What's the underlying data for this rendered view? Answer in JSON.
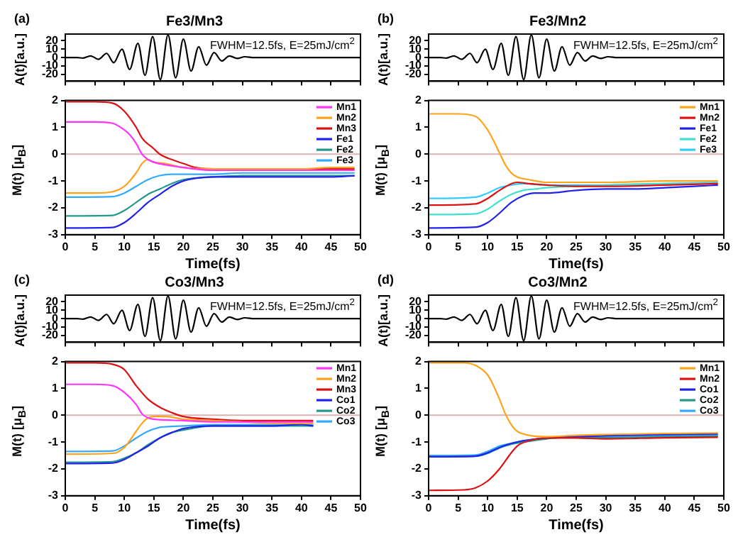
{
  "chart_data": [
    {
      "type": "line",
      "title": "Fe3/Mn3",
      "ylabel": "A(t)[a.u.]",
      "annotations": [
        "(a)",
        "FWHM=12.5fs, E=25mJ/cm$^{2}$"
      ],
      "xlim": [
        0,
        50
      ],
      "xticks": [
        0,
        5,
        10,
        15,
        20,
        25,
        30,
        35,
        40,
        45,
        50
      ],
      "ylim": [
        -28,
        28
      ],
      "yticks": [
        -20,
        -10,
        0,
        10,
        20
      ],
      "tick_labels": "y",
      "series": [
        {
          "color": "#000000",
          "x": [
            0,
            2,
            3,
            4.3,
            5.6,
            7,
            8.2,
            9.6,
            10.9,
            12.3,
            13.5,
            14.8,
            16.1,
            17.4,
            18.7,
            20,
            21.3,
            22.6,
            23.9,
            25.2,
            26.5,
            27.8,
            29.1,
            30.4,
            32,
            35,
            40,
            45,
            50
          ],
          "values": [
            0,
            0,
            -0.5,
            2,
            -2,
            5,
            -6,
            10,
            -14,
            17,
            -21,
            25,
            -26,
            27,
            -24,
            22,
            -16,
            13,
            -9,
            6,
            -4,
            2,
            -1,
            1,
            0,
            0,
            0,
            0,
            0
          ]
        }
      ]
    },
    {
      "type": "line",
      "title": "Fe3/Mn2",
      "ylabel": "A(t)[a.u.]",
      "annotations": [
        "(b)",
        "FWHM=12.5fs, E=25mJ/cm$^{2}$"
      ],
      "xlim": [
        0,
        50
      ],
      "xticks": [
        0,
        5,
        10,
        15,
        20,
        25,
        30,
        35,
        40,
        45,
        50
      ],
      "ylim": [
        -28,
        28
      ],
      "yticks": [
        -20,
        -10,
        0,
        10,
        20
      ],
      "tick_labels": "y",
      "series": [
        {
          "color": "#000000",
          "x": [
            0,
            2,
            3,
            4.3,
            5.6,
            7,
            8.2,
            9.6,
            10.9,
            12.3,
            13.5,
            14.8,
            16.1,
            17.4,
            18.7,
            20,
            21.3,
            22.6,
            23.9,
            25.2,
            26.5,
            27.8,
            29.1,
            30.4,
            32,
            35,
            40,
            45,
            50
          ],
          "values": [
            0,
            0,
            -0.5,
            2,
            -2,
            5,
            -6,
            10,
            -14,
            17,
            -21,
            25,
            -26,
            27,
            -24,
            22,
            -16,
            13,
            -9,
            6,
            -4,
            2,
            -1,
            1,
            0,
            0,
            0,
            0,
            0
          ]
        }
      ]
    },
    {
      "type": "line",
      "xlabel": "Time(fs)",
      "ylabel": "M(t) [μ$_{B}$]",
      "xlim": [
        0,
        50
      ],
      "xticks": [
        0,
        5,
        10,
        15,
        20,
        25,
        30,
        35,
        40,
        45,
        50
      ],
      "ylim": [
        -3,
        2
      ],
      "yticks": [
        -3,
        -2,
        -1,
        0,
        1,
        2
      ],
      "legend": "top right",
      "ref_lines": [
        {
          "axis": "y",
          "value": 0,
          "color": "#d9b3b3"
        }
      ],
      "series": [
        {
          "name": "Mn1",
          "color": "#ff33ff",
          "x": [
            0,
            5,
            8,
            10,
            11,
            12,
            13,
            14,
            15,
            17,
            20,
            25,
            30,
            35,
            40,
            45,
            49
          ],
          "values": [
            1.2,
            1.2,
            1.15,
            0.9,
            0.7,
            0.4,
            0,
            -0.2,
            -0.3,
            -0.4,
            -0.5,
            -0.6,
            -0.6,
            -0.6,
            -0.6,
            -0.6,
            -0.6
          ]
        },
        {
          "name": "Mn2",
          "color": "#ffa31a",
          "x": [
            0,
            5,
            8,
            10,
            12,
            13,
            14,
            15,
            17,
            20,
            25,
            30,
            35,
            40,
            45,
            49
          ],
          "values": [
            -1.45,
            -1.45,
            -1.4,
            -1.2,
            -0.7,
            -0.35,
            -0.2,
            -0.3,
            -0.35,
            -0.5,
            -0.55,
            -0.55,
            -0.55,
            -0.55,
            -0.5,
            -0.5
          ]
        },
        {
          "name": "Mn3",
          "color": "#dd1111",
          "x": [
            0,
            5,
            8,
            10,
            12,
            13,
            15,
            16,
            18,
            20,
            22,
            25,
            30,
            40,
            49
          ],
          "values": [
            1.95,
            1.95,
            1.9,
            1.6,
            1,
            0.6,
            0.2,
            0,
            -0.2,
            -0.35,
            -0.5,
            -0.55,
            -0.55,
            -0.55,
            -0.55
          ]
        },
        {
          "name": "Fe1",
          "color": "#2222ee",
          "x": [
            0,
            8,
            10,
            12,
            14,
            16,
            18,
            20,
            22,
            25,
            30,
            35,
            40,
            45,
            49
          ],
          "values": [
            -2.75,
            -2.73,
            -2.55,
            -2.2,
            -1.8,
            -1.5,
            -1.2,
            -1,
            -0.9,
            -0.85,
            -0.85,
            -0.85,
            -0.85,
            -0.85,
            -0.8
          ]
        },
        {
          "name": "Fe2",
          "color": "#22998a",
          "x": [
            0,
            8,
            10,
            12,
            14,
            16,
            18,
            20,
            25,
            30,
            40,
            49
          ],
          "values": [
            -2.3,
            -2.28,
            -2.1,
            -1.8,
            -1.5,
            -1.3,
            -1.1,
            -0.95,
            -0.85,
            -0.8,
            -0.8,
            -0.8
          ]
        },
        {
          "name": "Fe3",
          "color": "#33aaff",
          "x": [
            0,
            8,
            10,
            12,
            14,
            16,
            18,
            20,
            25,
            30,
            40,
            49
          ],
          "values": [
            -1.6,
            -1.58,
            -1.45,
            -1.2,
            -0.95,
            -0.8,
            -0.75,
            -0.75,
            -0.75,
            -0.7,
            -0.7,
            -0.7
          ]
        }
      ]
    },
    {
      "type": "line",
      "xlabel": "Time(fs)",
      "ylabel": "M(t) [μ$_{B}$]",
      "xlim": [
        0,
        50
      ],
      "xticks": [
        0,
        5,
        10,
        15,
        20,
        25,
        30,
        35,
        40,
        45,
        50
      ],
      "ylim": [
        -3,
        2
      ],
      "yticks": [
        -3,
        -2,
        -1,
        0,
        1,
        2
      ],
      "legend": "top right",
      "ref_lines": [
        {
          "axis": "y",
          "value": 0,
          "color": "#d9b3b3"
        }
      ],
      "series": [
        {
          "name": "Mn1",
          "color": "#ffa31a",
          "x": [
            0,
            5,
            8,
            10,
            11,
            12,
            13,
            14,
            15,
            17,
            20,
            25,
            30,
            40,
            49
          ],
          "values": [
            1.5,
            1.5,
            1.4,
            0.9,
            0.5,
            0.05,
            -0.4,
            -0.7,
            -0.85,
            -0.95,
            -1.05,
            -1.05,
            -1.05,
            -1,
            -1
          ]
        },
        {
          "name": "Mn2",
          "color": "#dd1111",
          "x": [
            0,
            8,
            10,
            12,
            14,
            15,
            17,
            20,
            25,
            30,
            40,
            49
          ],
          "values": [
            -1.9,
            -1.85,
            -1.65,
            -1.35,
            -1.1,
            -1.05,
            -1.1,
            -1.15,
            -1.2,
            -1.2,
            -1.15,
            -1.1
          ]
        },
        {
          "name": "Fe1",
          "color": "#2222ee",
          "x": [
            0,
            8,
            10,
            12,
            14,
            16,
            18,
            20,
            25,
            30,
            35,
            40,
            45,
            49
          ],
          "values": [
            -2.75,
            -2.72,
            -2.55,
            -2.2,
            -1.8,
            -1.55,
            -1.45,
            -1.45,
            -1.35,
            -1.3,
            -1.3,
            -1.25,
            -1.2,
            -1.15
          ]
        },
        {
          "name": "Fe2",
          "color": "#40e0d0",
          "x": [
            0,
            8,
            10,
            12,
            14,
            16,
            18,
            20,
            25,
            30,
            40,
            49
          ],
          "values": [
            -2.25,
            -2.22,
            -2.05,
            -1.75,
            -1.5,
            -1.35,
            -1.3,
            -1.25,
            -1.2,
            -1.15,
            -1.1,
            -1.1
          ]
        },
        {
          "name": "Fe3",
          "color": "#33ccff",
          "x": [
            0,
            8,
            10,
            12,
            14,
            16,
            20,
            25,
            30,
            40,
            49
          ],
          "values": [
            -1.65,
            -1.6,
            -1.45,
            -1.25,
            -1.15,
            -1.1,
            -1.15,
            -1.15,
            -1.15,
            -1.1,
            -1.05
          ]
        }
      ]
    },
    {
      "type": "line",
      "title": "Co3/Mn3",
      "ylabel": "A(t)[a.u.]",
      "annotations": [
        "(c)",
        "FWHM=12.5fs, E=25mJ/cm$^{2}$"
      ],
      "xlim": [
        0,
        50
      ],
      "xticks": [
        0,
        5,
        10,
        15,
        20,
        25,
        30,
        35,
        40,
        45,
        50
      ],
      "ylim": [
        -28,
        28
      ],
      "yticks": [
        -20,
        -10,
        0,
        10,
        20
      ],
      "tick_labels": "y",
      "series": [
        {
          "color": "#000000",
          "x": [
            0,
            2,
            3,
            4.3,
            5.6,
            7,
            8.2,
            9.6,
            10.9,
            12.3,
            13.5,
            14.8,
            16.1,
            17.4,
            18.7,
            20,
            21.3,
            22.6,
            23.9,
            25.2,
            26.5,
            27.8,
            29.1,
            30.4,
            32,
            35,
            40,
            45,
            50
          ],
          "values": [
            0,
            0,
            -0.5,
            2,
            -2,
            5,
            -6,
            10,
            -14,
            17,
            -21,
            25,
            -26,
            27,
            -24,
            22,
            -16,
            13,
            -9,
            6,
            -4,
            2,
            -1,
            1,
            0,
            0,
            0,
            0,
            0
          ]
        }
      ]
    },
    {
      "type": "line",
      "title": "Co3/Mn2",
      "ylabel": "A(t)[a.u.]",
      "annotations": [
        "(d)",
        "FWHM=12.5fs, E=25mJ/cm$^{2}$"
      ],
      "xlim": [
        0,
        50
      ],
      "xticks": [
        0,
        5,
        10,
        15,
        20,
        25,
        30,
        35,
        40,
        45,
        50
      ],
      "ylim": [
        -28,
        28
      ],
      "yticks": [
        -20,
        -10,
        0,
        10,
        20
      ],
      "tick_labels": "y",
      "series": [
        {
          "color": "#000000",
          "x": [
            0,
            2,
            3,
            4.3,
            5.6,
            7,
            8.2,
            9.6,
            10.9,
            12.3,
            13.5,
            14.8,
            16.1,
            17.4,
            18.7,
            20,
            21.3,
            22.6,
            23.9,
            25.2,
            26.5,
            27.8,
            29.1,
            30.4,
            32,
            35,
            40,
            45,
            50
          ],
          "values": [
            0,
            0,
            -0.5,
            2,
            -2,
            5,
            -6,
            10,
            -14,
            17,
            -21,
            25,
            -26,
            27,
            -24,
            22,
            -16,
            13,
            -9,
            6,
            -4,
            2,
            -1,
            1,
            0,
            0,
            0,
            0,
            0
          ]
        }
      ]
    },
    {
      "type": "line",
      "xlabel": "Time(fs)",
      "ylabel": "M(t) [μ$_{B}$]",
      "xlim": [
        0,
        50
      ],
      "xticks": [
        0,
        5,
        10,
        15,
        20,
        25,
        30,
        35,
        40,
        45,
        50
      ],
      "ylim": [
        -3,
        2
      ],
      "yticks": [
        -3,
        -2,
        -1,
        0,
        1,
        2
      ],
      "legend": "top right",
      "ref_lines": [
        {
          "axis": "y",
          "value": 0,
          "color": "#d9b3b3"
        }
      ],
      "series": [
        {
          "name": "Mn1",
          "color": "#ff33ff",
          "x": [
            0,
            5,
            8,
            10,
            12,
            13,
            14,
            15,
            20,
            25,
            30,
            35,
            40,
            42
          ],
          "values": [
            1.15,
            1.15,
            1.1,
            0.85,
            0.4,
            0.05,
            -0.1,
            -0.15,
            -0.2,
            -0.25,
            -0.25,
            -0.25,
            -0.25,
            -0.25
          ]
        },
        {
          "name": "Mn2",
          "color": "#ffa31a",
          "x": [
            0,
            8,
            10,
            12,
            13,
            14,
            15,
            17,
            20,
            25,
            30,
            35,
            40,
            42
          ],
          "values": [
            -1.45,
            -1.42,
            -1.2,
            -0.6,
            -0.3,
            -0.1,
            -0.05,
            -0.05,
            -0.15,
            -0.2,
            -0.25,
            -0.3,
            -0.3,
            -0.3
          ]
        },
        {
          "name": "Mn3",
          "color": "#dd1111",
          "x": [
            0,
            5,
            8,
            10,
            12,
            14,
            16,
            18,
            20,
            25,
            30,
            35,
            40,
            42
          ],
          "values": [
            1.95,
            1.95,
            1.9,
            1.7,
            1.1,
            0.6,
            0.3,
            0.1,
            -0.05,
            -0.15,
            -0.2,
            -0.2,
            -0.2,
            -0.2
          ]
        },
        {
          "name": "Co1",
          "color": "#2222ee",
          "x": [
            0,
            8,
            10,
            12,
            14,
            16,
            18,
            20,
            25,
            30,
            35,
            40,
            42
          ],
          "values": [
            -1.8,
            -1.78,
            -1.65,
            -1.4,
            -1.15,
            -0.85,
            -0.65,
            -0.5,
            -0.4,
            -0.4,
            -0.4,
            -0.35,
            -0.4
          ]
        },
        {
          "name": "Co2",
          "color": "#22998a",
          "x": [
            0,
            8,
            10,
            12,
            14,
            16,
            18,
            20,
            25,
            30,
            40,
            42
          ],
          "values": [
            -1.75,
            -1.73,
            -1.6,
            -1.4,
            -1.1,
            -0.85,
            -0.65,
            -0.55,
            -0.4,
            -0.4,
            -0.4,
            -0.4
          ]
        },
        {
          "name": "Co3",
          "color": "#33aaff",
          "x": [
            0,
            8,
            10,
            12,
            14,
            16,
            18,
            20,
            25,
            30,
            40,
            42
          ],
          "values": [
            -1.35,
            -1.33,
            -1.15,
            -0.85,
            -0.6,
            -0.45,
            -0.42,
            -0.4,
            -0.35,
            -0.35,
            -0.35,
            -0.35
          ]
        }
      ]
    },
    {
      "type": "line",
      "xlabel": "Time(fs)",
      "ylabel": "M(t) [μ$_{B}$]",
      "xlim": [
        0,
        50
      ],
      "xticks": [
        0,
        5,
        10,
        15,
        20,
        25,
        30,
        35,
        40,
        45,
        50
      ],
      "ylim": [
        -3,
        2
      ],
      "yticks": [
        -3,
        -2,
        -1,
        0,
        1,
        2
      ],
      "legend": "top right",
      "ref_lines": [
        {
          "axis": "y",
          "value": 0,
          "color": "#d9b3b3"
        }
      ],
      "series": [
        {
          "name": "Mn1",
          "color": "#ffa31a",
          "x": [
            0,
            6,
            8,
            10,
            11,
            12,
            13,
            14,
            15,
            17,
            20,
            25,
            30,
            40,
            49
          ],
          "values": [
            1.95,
            1.95,
            1.85,
            1.5,
            1.1,
            0.6,
            0.05,
            -0.35,
            -0.6,
            -0.75,
            -0.8,
            -0.75,
            -0.72,
            -0.68,
            -0.66
          ]
        },
        {
          "name": "Mn2",
          "color": "#dd1111",
          "x": [
            0,
            6,
            8,
            10,
            12,
            14,
            15,
            17,
            20,
            25,
            30,
            40,
            49
          ],
          "values": [
            -2.8,
            -2.78,
            -2.7,
            -2.45,
            -2,
            -1.4,
            -1.15,
            -0.95,
            -0.85,
            -0.85,
            -0.88,
            -0.84,
            -0.82
          ]
        },
        {
          "name": "Co1",
          "color": "#2222ee",
          "x": [
            0,
            8,
            10,
            12,
            14,
            16,
            20,
            25,
            30,
            40,
            49
          ],
          "values": [
            -1.55,
            -1.52,
            -1.4,
            -1.2,
            -1.05,
            -0.95,
            -0.85,
            -0.8,
            -0.76,
            -0.72,
            -0.7
          ]
        },
        {
          "name": "Co2",
          "color": "#22998a",
          "x": [
            0,
            8,
            10,
            12,
            14,
            16,
            20,
            25,
            30,
            40,
            49
          ],
          "values": [
            -1.55,
            -1.53,
            -1.42,
            -1.22,
            -1.08,
            -1,
            -0.88,
            -0.8,
            -0.84,
            -0.8,
            -0.78
          ]
        },
        {
          "name": "Co3",
          "color": "#33aaff",
          "x": [
            0,
            8,
            10,
            12,
            14,
            16,
            20,
            25,
            30,
            40,
            49
          ],
          "values": [
            -1.5,
            -1.48,
            -1.35,
            -1.15,
            -1.05,
            -0.95,
            -0.85,
            -0.78,
            -0.8,
            -0.76,
            -0.74
          ]
        }
      ]
    }
  ]
}
